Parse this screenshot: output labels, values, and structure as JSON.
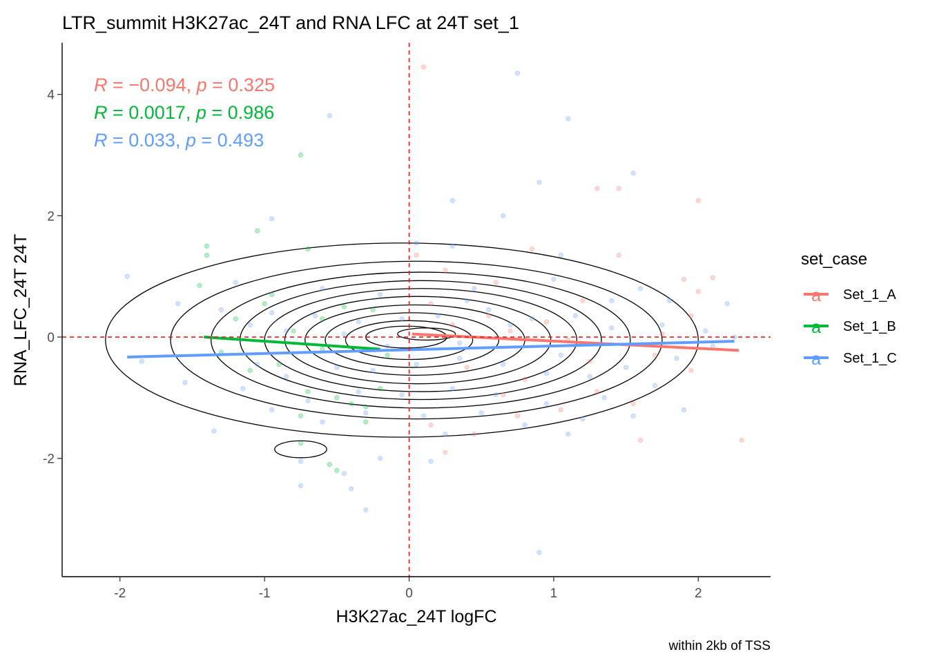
{
  "chart_data": {
    "type": "scatter",
    "title": "LTR_summit H3K27ac_24T and RNA LFC at 24T set_1",
    "xlabel": "H3K27ac_24T logFC",
    "ylabel": "RNA_LFC_24T 24T",
    "caption": "within 2kb of TSS",
    "xlim": [
      -2.4,
      2.5
    ],
    "ylim": [
      -3.95,
      4.85
    ],
    "x_ticks": [
      -2,
      -1,
      0,
      1,
      2
    ],
    "x_tick_labels": [
      "-2",
      "-1",
      "0",
      "1",
      "2"
    ],
    "y_ticks": [
      -2,
      0,
      2,
      4
    ],
    "y_tick_labels": [
      "-2",
      "0",
      "2",
      "4"
    ],
    "grid": false,
    "reference_lines": {
      "x": 0,
      "y": 0,
      "color": "#E41A1C",
      "style": "dashed"
    },
    "legend": {
      "title": "set_case",
      "position": "right",
      "key_glyph": "a",
      "entries": [
        {
          "name": "Set_1_A",
          "color": "#F8766D"
        },
        {
          "name": "Set_1_B",
          "color": "#00BA38"
        },
        {
          "name": "Set_1_C",
          "color": "#619CFF"
        }
      ]
    },
    "stats": [
      {
        "series": "Set_1_A",
        "R": "−0.094",
        "p": "0.325",
        "color": "#F8766D"
      },
      {
        "series": "Set_1_B",
        "R": "0.0017",
        "p": "0.986",
        "color": "#00BA38"
      },
      {
        "series": "Set_1_C",
        "R": "0.033",
        "p": "0.493",
        "color": "#619CFF"
      }
    ],
    "series": [
      {
        "name": "Set_1_A",
        "color": "#F8766D",
        "fit": {
          "x": [
            0.02,
            2.28
          ],
          "y": [
            0.05,
            -0.22
          ]
        },
        "points": [
          [
            0.1,
            4.45
          ],
          [
            1.45,
            2.45
          ],
          [
            1.3,
            2.45
          ],
          [
            2.0,
            2.25
          ],
          [
            0.85,
            1.45
          ],
          [
            1.45,
            1.35
          ],
          [
            1.9,
            0.95
          ],
          [
            2.1,
            0.98
          ],
          [
            2.0,
            0.75
          ],
          [
            0.05,
            1.35
          ],
          [
            0.25,
            1.1
          ],
          [
            0.6,
            0.9
          ],
          [
            1.2,
            0.6
          ],
          [
            1.95,
            0.35
          ],
          [
            0.3,
            0.2
          ],
          [
            0.7,
            0.1
          ],
          [
            1.1,
            -0.05
          ],
          [
            1.7,
            -0.3
          ],
          [
            1.95,
            -0.55
          ],
          [
            0.4,
            -0.5
          ],
          [
            0.8,
            -0.7
          ],
          [
            1.3,
            -0.9
          ],
          [
            2.3,
            -1.7
          ],
          [
            1.6,
            -1.7
          ],
          [
            0.75,
            -1.3
          ],
          [
            0.45,
            -1.6
          ],
          [
            0.25,
            -1.9
          ],
          [
            0.15,
            -1.45
          ],
          [
            1.05,
            -1.2
          ],
          [
            1.55,
            -1.1
          ],
          [
            0.55,
            0.35
          ],
          [
            0.95,
            0.25
          ],
          [
            1.75,
            0.05
          ],
          [
            0.15,
            0.55
          ],
          [
            1.25,
            -0.4
          ],
          [
            0.65,
            -0.95
          ]
        ]
      },
      {
        "name": "Set_1_B",
        "color": "#00BA38",
        "fit": {
          "x": [
            -1.42,
            -0.2
          ],
          "y": [
            0.0,
            -0.2
          ]
        },
        "points": [
          [
            -0.75,
            3.0
          ],
          [
            -1.05,
            1.75
          ],
          [
            -1.4,
            1.5
          ],
          [
            -1.4,
            1.35
          ],
          [
            -0.7,
            1.45
          ],
          [
            -1.45,
            0.85
          ],
          [
            -0.95,
            0.7
          ],
          [
            -1.0,
            0.55
          ],
          [
            -0.45,
            0.5
          ],
          [
            -1.2,
            0.3
          ],
          [
            -0.8,
            0.1
          ],
          [
            -0.6,
            -0.2
          ],
          [
            -0.9,
            -0.45
          ],
          [
            -1.1,
            -0.55
          ],
          [
            -0.7,
            -0.9
          ],
          [
            -0.5,
            -1.0
          ],
          [
            -0.4,
            -1.1
          ],
          [
            -0.3,
            -1.15
          ],
          [
            -0.75,
            -1.3
          ],
          [
            -0.75,
            -1.75
          ],
          [
            -0.55,
            -2.1
          ],
          [
            -0.5,
            -2.2
          ],
          [
            -0.3,
            -1.4
          ],
          [
            -0.2,
            -0.85
          ],
          [
            -0.15,
            -0.3
          ],
          [
            -0.25,
            0.45
          ],
          [
            -0.6,
            0.3
          ],
          [
            -1.3,
            -0.25
          ]
        ]
      },
      {
        "name": "Set_1_C",
        "color": "#619CFF",
        "fit": {
          "x": [
            -1.95,
            2.25
          ],
          "y": [
            -0.33,
            -0.07
          ]
        },
        "points": [
          [
            0.75,
            4.35
          ],
          [
            1.1,
            3.6
          ],
          [
            -0.55,
            3.65
          ],
          [
            0.9,
            2.55
          ],
          [
            1.55,
            2.7
          ],
          [
            0.3,
            2.25
          ],
          [
            0.65,
            2.0
          ],
          [
            -0.95,
            1.95
          ],
          [
            0.05,
            1.55
          ],
          [
            0.3,
            1.5
          ],
          [
            1.05,
            1.35
          ],
          [
            -1.95,
            1.0
          ],
          [
            -1.2,
            0.9
          ],
          [
            -0.6,
            0.8
          ],
          [
            -0.2,
            0.7
          ],
          [
            0.45,
            0.8
          ],
          [
            1.0,
            0.95
          ],
          [
            1.6,
            0.8
          ],
          [
            1.8,
            0.6
          ],
          [
            2.2,
            0.55
          ],
          [
            -1.6,
            0.55
          ],
          [
            -1.3,
            0.45
          ],
          [
            -0.95,
            0.4
          ],
          [
            -0.65,
            0.35
          ],
          [
            -0.35,
            0.25
          ],
          [
            -0.05,
            0.3
          ],
          [
            0.2,
            0.35
          ],
          [
            0.55,
            0.45
          ],
          [
            0.85,
            0.3
          ],
          [
            1.15,
            0.35
          ],
          [
            1.4,
            0.15
          ],
          [
            1.75,
            0.2
          ],
          [
            2.05,
            0.1
          ],
          [
            2.25,
            0.0
          ],
          [
            -1.85,
            -0.4
          ],
          [
            -1.55,
            -0.75
          ],
          [
            -1.35,
            -1.55
          ],
          [
            -1.05,
            -0.45
          ],
          [
            -0.85,
            -0.65
          ],
          [
            -0.5,
            -0.5
          ],
          [
            -0.25,
            -0.55
          ],
          [
            0.05,
            -0.45
          ],
          [
            0.35,
            -0.35
          ],
          [
            0.65,
            -0.45
          ],
          [
            0.95,
            -0.6
          ],
          [
            1.25,
            -0.65
          ],
          [
            1.5,
            -0.5
          ],
          [
            1.85,
            -0.35
          ],
          [
            2.1,
            -0.15
          ],
          [
            -1.15,
            -0.85
          ],
          [
            -0.7,
            -1.05
          ],
          [
            -0.35,
            -0.9
          ],
          [
            -0.05,
            -0.95
          ],
          [
            0.3,
            -0.85
          ],
          [
            0.6,
            -0.95
          ],
          [
            0.95,
            -1.1
          ],
          [
            1.2,
            -1.35
          ],
          [
            1.55,
            -1.3
          ],
          [
            1.9,
            -1.2
          ],
          [
            -0.95,
            -1.2
          ],
          [
            -0.6,
            -1.4
          ],
          [
            -0.3,
            -1.25
          ],
          [
            0.1,
            -1.3
          ],
          [
            0.5,
            -1.25
          ],
          [
            0.8,
            -1.45
          ],
          [
            1.1,
            -1.6
          ],
          [
            -0.75,
            -2.05
          ],
          [
            -0.45,
            -2.25
          ],
          [
            -0.2,
            -2.0
          ],
          [
            0.15,
            -2.05
          ],
          [
            -0.4,
            -2.5
          ],
          [
            -0.3,
            -2.85
          ],
          [
            0.9,
            -3.55
          ],
          [
            -0.75,
            -2.45
          ],
          [
            1.4,
            0.6
          ],
          [
            0.7,
            0.2
          ],
          [
            -0.85,
            0.1
          ],
          [
            0.35,
            -0.1
          ],
          [
            1.05,
            -0.3
          ],
          [
            -0.15,
            -0.15
          ],
          [
            0.4,
            0.6
          ],
          [
            -0.45,
            0.05
          ],
          [
            1.7,
            -0.8
          ],
          [
            -1.1,
            0.2
          ],
          [
            0.25,
            -1.6
          ],
          [
            1.35,
            -1.0
          ]
        ]
      }
    ],
    "density_contours": {
      "color": "#000000",
      "levels": [
        {
          "cx": -0.05,
          "cy": -0.05,
          "rx": 2.05,
          "ry": 1.6
        },
        {
          "cx": 0.05,
          "cy": -0.05,
          "rx": 1.7,
          "ry": 1.3
        },
        {
          "cx": 0.08,
          "cy": -0.05,
          "rx": 1.45,
          "ry": 1.12
        },
        {
          "cx": 0.08,
          "cy": -0.05,
          "rx": 1.25,
          "ry": 0.98
        },
        {
          "cx": 0.08,
          "cy": -0.05,
          "rx": 1.08,
          "ry": 0.85
        },
        {
          "cx": 0.06,
          "cy": -0.05,
          "rx": 0.92,
          "ry": 0.72
        },
        {
          "cx": 0.04,
          "cy": -0.05,
          "rx": 0.76,
          "ry": 0.58
        },
        {
          "cx": 0.02,
          "cy": -0.05,
          "rx": 0.6,
          "ry": 0.45
        },
        {
          "cx": 0.0,
          "cy": -0.05,
          "rx": 0.44,
          "ry": 0.32
        },
        {
          "cx": -0.02,
          "cy": 0.0,
          "rx": 0.28,
          "ry": 0.18
        },
        {
          "cx": 0.12,
          "cy": 0.05,
          "rx": 0.2,
          "ry": 0.1
        },
        {
          "cx": -0.75,
          "cy": -1.85,
          "rx": 0.18,
          "ry": 0.14
        }
      ]
    }
  }
}
